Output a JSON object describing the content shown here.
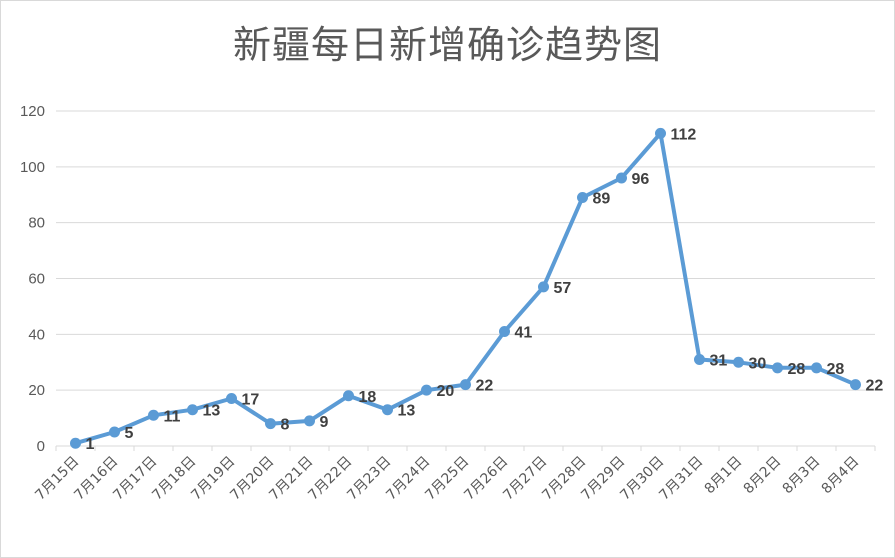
{
  "chart_data": {
    "type": "line",
    "title": "新疆每日新增确诊趋势图",
    "categories": [
      "7月15日",
      "7月16日",
      "7月17日",
      "7月18日",
      "7月19日",
      "7月20日",
      "7月21日",
      "7月22日",
      "7月23日",
      "7月24日",
      "7月25日",
      "7月26日",
      "7月27日",
      "7月28日",
      "7月29日",
      "7月30日",
      "7月31日",
      "8月1日",
      "8月2日",
      "8月3日",
      "8月4日"
    ],
    "values": [
      1,
      5,
      11,
      13,
      17,
      8,
      9,
      18,
      13,
      20,
      22,
      41,
      57,
      89,
      96,
      112,
      31,
      30,
      28,
      28,
      22
    ],
    "data_labels": [
      "1",
      "5",
      "11",
      "13",
      "17",
      "8",
      "9",
      "18",
      "13",
      "20",
      "22",
      "41",
      "57",
      "89",
      "96",
      "112",
      "31",
      "30",
      "28",
      "28",
      "22"
    ],
    "ylim": [
      0,
      120
    ],
    "yticks": [
      "0",
      "20",
      "40",
      "60",
      "80",
      "100",
      "120"
    ],
    "grid": true,
    "legend": "none",
    "line_color": "#5b9bd5",
    "grid_color": "#d9d9d9",
    "text_color": "#595959"
  }
}
